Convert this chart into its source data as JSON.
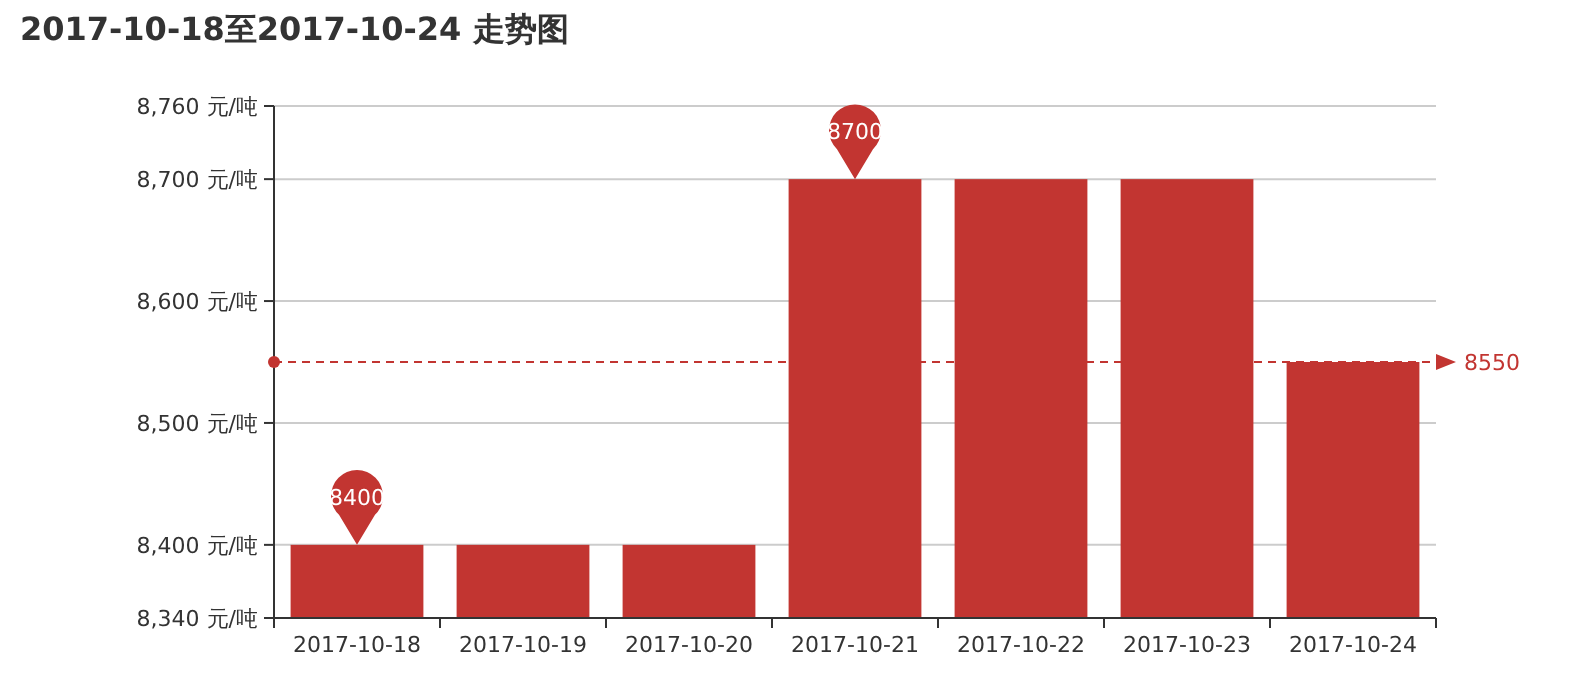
{
  "chart_data": {
    "type": "bar",
    "title": "2017-10-18至2017-10-24 走势图",
    "categories": [
      "2017-10-18",
      "2017-10-19",
      "2017-10-20",
      "2017-10-21",
      "2017-10-22",
      "2017-10-23",
      "2017-10-24"
    ],
    "values": [
      8400,
      8400,
      8400,
      8700,
      8700,
      8700,
      8550
    ],
    "color": "#c23531",
    "ylim": [
      8340,
      8760
    ],
    "yticks": [
      {
        "value": 8340,
        "label": "8,340 元/吨"
      },
      {
        "value": 8400,
        "label": "8,400 元/吨"
      },
      {
        "value": 8500,
        "label": "8,500 元/吨"
      },
      {
        "value": 8600,
        "label": "8,600 元/吨"
      },
      {
        "value": 8700,
        "label": "8,700 元/吨"
      },
      {
        "value": 8760,
        "label": "8,760 元/吨"
      }
    ],
    "grid": "y",
    "ref_lines": [
      {
        "axis": "y",
        "value": 8550,
        "label": "8550",
        "color": "#c23531",
        "line_style": "dashed"
      }
    ],
    "annotations": [
      {
        "text": "8700",
        "x": "2017-10-21",
        "y": 8700
      },
      {
        "text": "8400",
        "x": "2017-10-18",
        "y": 8400
      }
    ]
  }
}
